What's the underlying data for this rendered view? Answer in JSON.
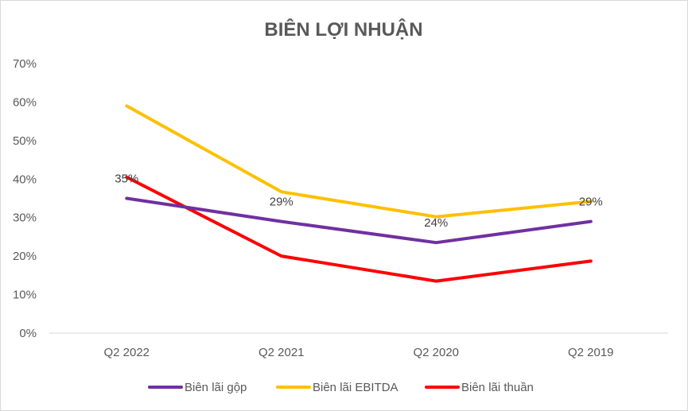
{
  "chart_data": {
    "type": "line",
    "title": "BIÊN LỢI NHUẬN",
    "categories": [
      "Q2 2022",
      "Q2 2021",
      "Q2 2020",
      "Q2 2019"
    ],
    "ylim": [
      0,
      0.7
    ],
    "yticks": [
      0,
      0.1,
      0.2,
      0.3,
      0.4,
      0.5,
      0.6,
      0.7
    ],
    "ytick_labels": [
      "0%",
      "10%",
      "20%",
      "30%",
      "40%",
      "50%",
      "60%",
      "70%"
    ],
    "grid": false,
    "legend_position": "bottom",
    "series": [
      {
        "name": "Biên lãi gộp",
        "color": "#7030a0",
        "values": [
          0.35,
          0.29,
          0.235,
          0.29
        ],
        "data_labels": [
          "35%",
          "29%",
          "24%",
          "29%"
        ]
      },
      {
        "name": "Biên lãi EBITDA",
        "color": "#ffc000",
        "values": [
          0.59,
          0.367,
          0.302,
          0.342
        ]
      },
      {
        "name": "Biên lãi thuần",
        "color": "#ff0000",
        "values": [
          0.405,
          0.2,
          0.135,
          0.187
        ]
      }
    ]
  }
}
